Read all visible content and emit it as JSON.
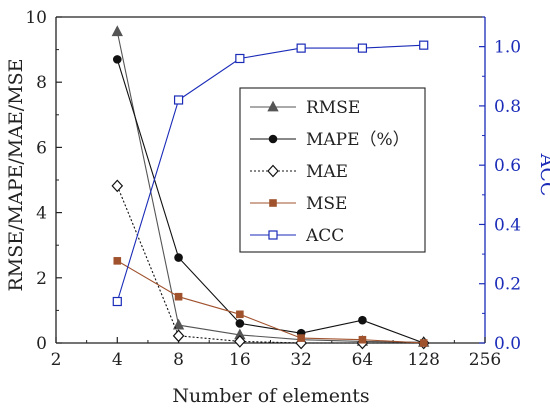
{
  "chart_data": {
    "type": "line",
    "xscale": "log2",
    "xlabel": "Number of elements",
    "ylabel": "RMSE/MAPE/MAE/MSE",
    "ylabel_right": "ACC",
    "xlim": [
      2,
      256
    ],
    "ylim": [
      0,
      10
    ],
    "ylim_right": [
      0.0,
      1.1
    ],
    "xticks": [
      2,
      4,
      8,
      16,
      32,
      64,
      128,
      256
    ],
    "yticks": [
      0,
      2,
      4,
      6,
      8,
      10
    ],
    "yticks_right": [
      "0.0",
      "0.2",
      "0.4",
      "0.6",
      "0.8",
      "1.0"
    ],
    "grid": false,
    "legend_position": "center-right",
    "x": [
      4,
      8,
      16,
      32,
      64,
      128
    ],
    "series": [
      {
        "name": "RMSE",
        "axis": "left",
        "marker": "triangle",
        "style": "solid",
        "color": "#555555",
        "values": [
          9.55,
          0.55,
          0.25,
          0.1,
          0.05,
          0.02
        ]
      },
      {
        "name": "MAPE（%）",
        "axis": "left",
        "marker": "circle",
        "style": "solid",
        "color": "#111111",
        "values": [
          8.7,
          2.62,
          0.6,
          0.3,
          0.7,
          0.0
        ]
      },
      {
        "name": "MAE",
        "axis": "left",
        "marker": "diamond-open",
        "style": "dotted",
        "color": "#111111",
        "values": [
          4.82,
          0.22,
          0.05,
          0.0,
          0.0,
          0.0
        ]
      },
      {
        "name": "MSE",
        "axis": "left",
        "marker": "square",
        "style": "solid",
        "color": "#a0522d",
        "values": [
          2.52,
          1.42,
          0.88,
          0.15,
          0.1,
          0.0
        ]
      },
      {
        "name": "ACC",
        "axis": "right",
        "marker": "square-open",
        "style": "solid",
        "color": "#1a2bb8",
        "values": [
          0.14,
          0.82,
          0.96,
          0.995,
          0.995,
          1.005
        ]
      }
    ]
  }
}
